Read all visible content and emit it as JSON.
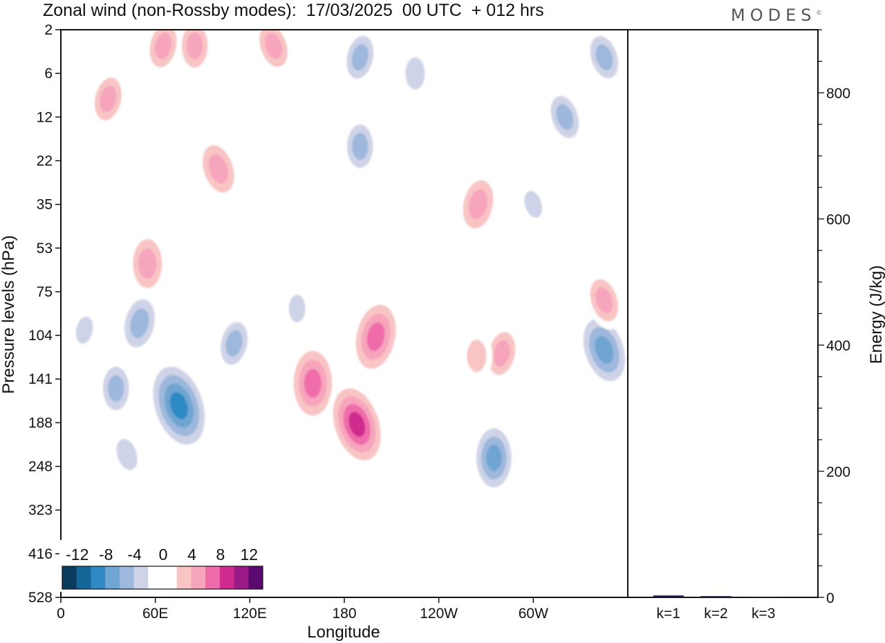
{
  "header": {
    "title": "Zonal wind (non-Rossby modes):  17/03/2025  00 UTC  + 012 hrs",
    "logo": "MODES"
  },
  "chart_data": [
    {
      "type": "heatmap",
      "title": "Zonal wind (non-Rossby modes):  17/03/2025  00 UTC  + 012 hrs",
      "xlabel": "Longitude",
      "ylabel": "Pressure levels (hPa)",
      "x_ticks": [
        "0",
        "60E",
        "120E",
        "180",
        "120W",
        "60W"
      ],
      "x_tick_lon": [
        0,
        60,
        120,
        180,
        240,
        300
      ],
      "xlim": [
        0,
        360
      ],
      "y_ticks": [
        "2",
        "6",
        "12",
        "22",
        "35",
        "53",
        "75",
        "104",
        "141",
        "188",
        "248",
        "323",
        "416",
        "528"
      ],
      "colorbar": {
        "labels": [
          "-12",
          "-8",
          "-4",
          "0",
          "4",
          "8",
          "12"
        ],
        "colors": [
          "#0b3c5d",
          "#15679a",
          "#2f8ac4",
          "#6fa5d1",
          "#9db8dc",
          "#cfd3e7",
          "#ffffff",
          "#ffffff",
          "#f8c4c4",
          "#f7a4bd",
          "#ee6ca9",
          "#cf2b8e",
          "#9a1a86",
          "#5a0a6e"
        ]
      },
      "grid": false,
      "features": [
        {
          "lon": 75,
          "level": 168,
          "value": -10
        },
        {
          "lon": 50,
          "level": 95,
          "value": -6
        },
        {
          "lon": 35,
          "level": 150,
          "value": -5
        },
        {
          "lon": 42,
          "level": 230,
          "value": -4
        },
        {
          "lon": 110,
          "level": 110,
          "value": -5
        },
        {
          "lon": 160,
          "level": 145,
          "value": 8
        },
        {
          "lon": 188,
          "level": 190,
          "value": 9
        },
        {
          "lon": 200,
          "level": 105,
          "value": 8
        },
        {
          "lon": 275,
          "level": 235,
          "value": -7
        },
        {
          "lon": 345,
          "level": 115,
          "value": -8
        },
        {
          "lon": 280,
          "level": 118,
          "value": 5
        },
        {
          "lon": 264,
          "level": 120,
          "value": 4
        },
        {
          "lon": 345,
          "level": 80,
          "value": 5
        },
        {
          "lon": 265,
          "level": 35,
          "value": 6
        },
        {
          "lon": 55,
          "level": 60,
          "value": 6
        },
        {
          "lon": 100,
          "level": 24,
          "value": 6
        },
        {
          "lon": 190,
          "level": 4,
          "value": -5
        },
        {
          "lon": 225,
          "level": 6,
          "value": -4
        },
        {
          "lon": 345,
          "level": 4,
          "value": -5
        },
        {
          "lon": 65,
          "level": 3,
          "value": 5
        },
        {
          "lon": 85,
          "level": 3,
          "value": 5
        },
        {
          "lon": 135,
          "level": 3,
          "value": 5
        },
        {
          "lon": 30,
          "level": 9,
          "value": 5
        },
        {
          "lon": 190,
          "level": 18,
          "value": -5
        },
        {
          "lon": 320,
          "level": 12,
          "value": -5
        },
        {
          "lon": 15,
          "level": 100,
          "value": -3
        },
        {
          "lon": 150,
          "level": 85,
          "value": -3
        },
        {
          "lon": 300,
          "level": 35,
          "value": -3
        }
      ]
    },
    {
      "type": "bar",
      "categories": [
        "k=1",
        "k=2",
        "k=3"
      ],
      "values": [
        3,
        2,
        1
      ],
      "ylabel": "Energy (J/kg)",
      "y_ticks": [
        "0",
        "200",
        "400",
        "600",
        "800"
      ],
      "ylim": [
        0,
        900
      ],
      "bar_color": "#1a1a4a"
    }
  ]
}
